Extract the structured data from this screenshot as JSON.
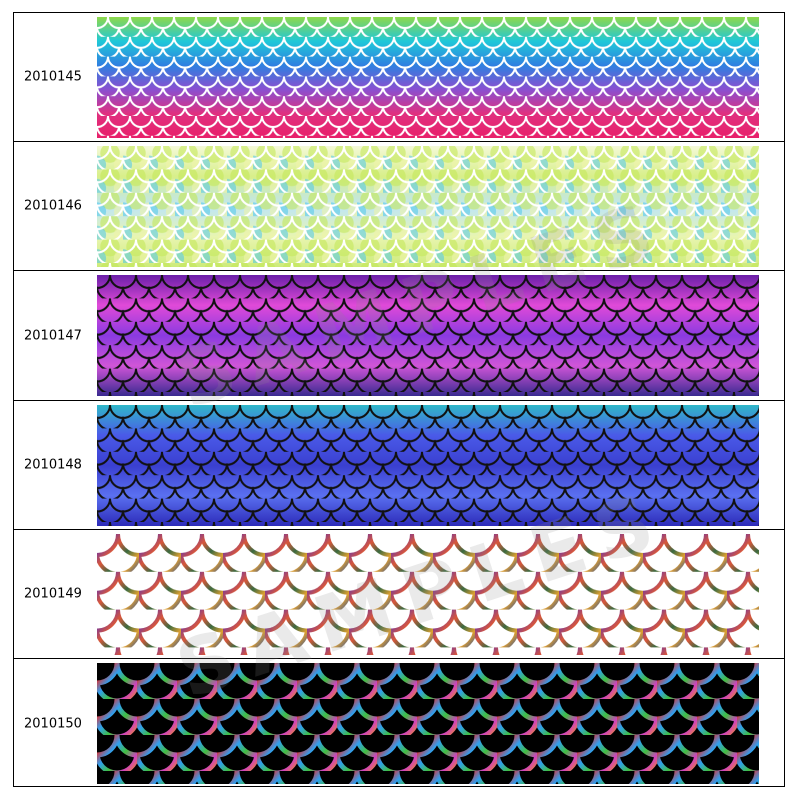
{
  "rows": [
    {
      "code": "2010145"
    },
    {
      "code": "2010146"
    },
    {
      "code": "2010147"
    },
    {
      "code": "2010148"
    },
    {
      "code": "2010149"
    },
    {
      "code": "2010150"
    }
  ],
  "watermark": "SAMPLES"
}
